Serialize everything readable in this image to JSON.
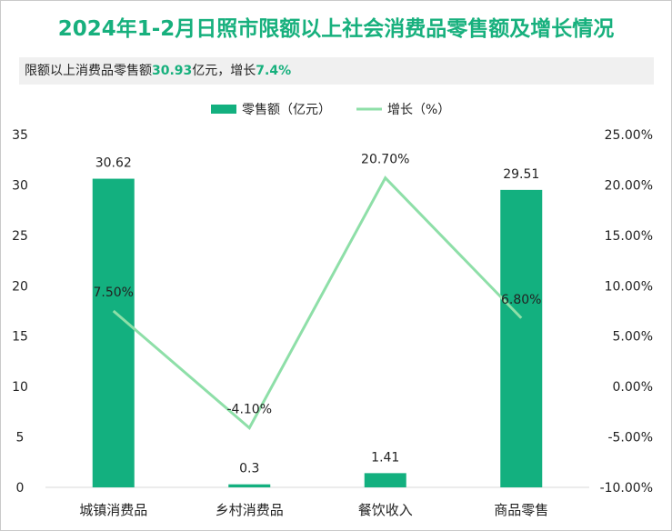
{
  "title": "2024年1-2月日照市限额以上社会消费品零售额及增长情况",
  "summary": {
    "prefix": "限额以上消费品零售额",
    "value": "30.93",
    "mid": "亿元，增长",
    "growth": "7.4%"
  },
  "colors": {
    "title": "#17b07d",
    "bar": "#13b07f",
    "line": "#8edfa8"
  },
  "chart_data": {
    "type": "bar",
    "categories": [
      "城镇消费品",
      "乡村消费品",
      "餐饮收入",
      "商品零售"
    ],
    "series": [
      {
        "name": "零售额（亿元）",
        "type": "bar",
        "axis": "left",
        "values": [
          30.62,
          0.3,
          1.41,
          29.51
        ],
        "labels": [
          "30.62",
          "0.3",
          "1.41",
          "29.51"
        ]
      },
      {
        "name": "增长（%）",
        "type": "line",
        "axis": "right",
        "values": [
          7.5,
          -4.1,
          20.7,
          6.8
        ],
        "labels": [
          "7.50%",
          "-4.10%",
          "20.70%",
          "6.80%"
        ]
      }
    ],
    "left_axis": {
      "ylim": [
        0,
        35
      ],
      "ticks": [
        0,
        5,
        10,
        15,
        20,
        25,
        30,
        35
      ],
      "tick_labels": [
        "0",
        "5",
        "10",
        "15",
        "20",
        "25",
        "30",
        "35"
      ]
    },
    "right_axis": {
      "ylim": [
        -10,
        25
      ],
      "ticks": [
        -10,
        -5,
        0,
        5,
        10,
        15,
        20,
        25
      ],
      "tick_labels": [
        "-10.00%",
        "-5.00%",
        "0.00%",
        "5.00%",
        "10.00%",
        "15.00%",
        "20.00%",
        "25.00%"
      ]
    },
    "legend_position": "top-center",
    "grid": false
  }
}
